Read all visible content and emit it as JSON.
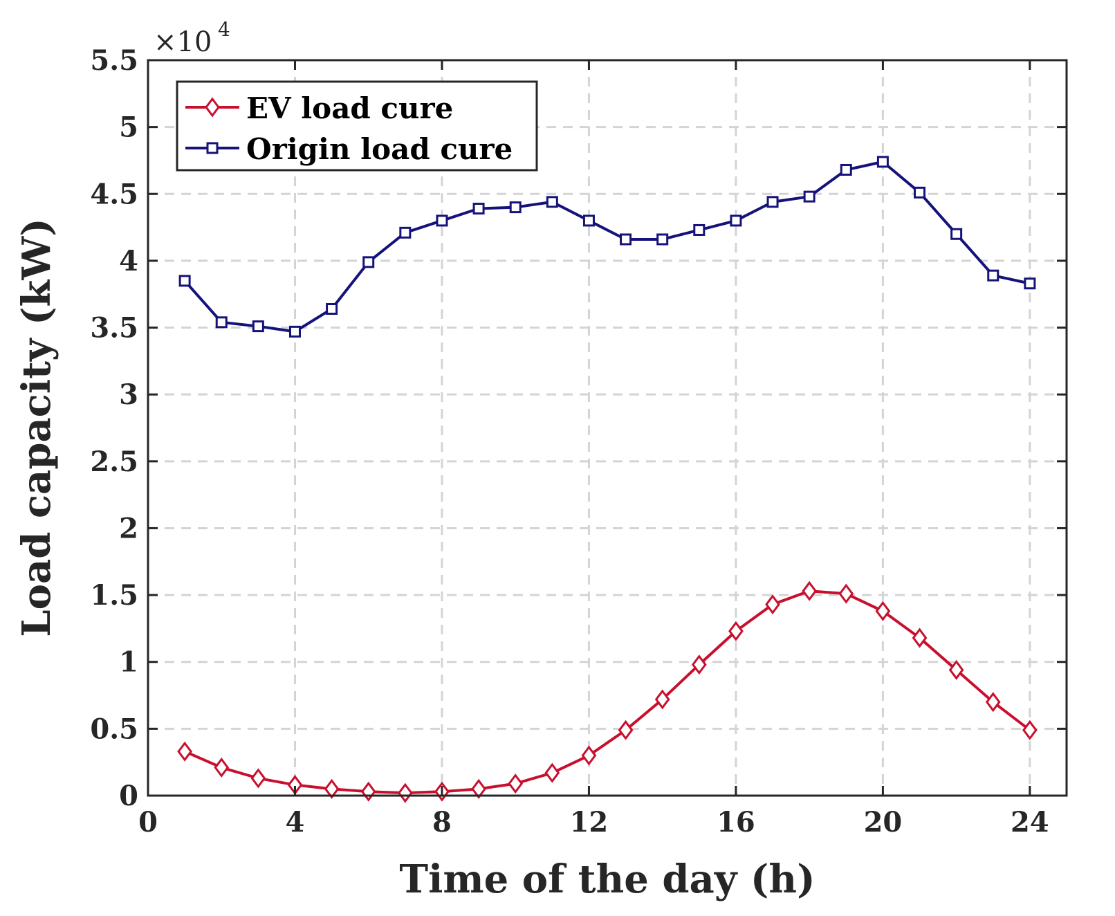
{
  "chart_data": {
    "type": "line",
    "title": "",
    "xlabel": "Time of the day (h)",
    "ylabel": "Load capacity (kW)",
    "y_exponent": {
      "base": "×10",
      "power": "4"
    },
    "xlim": [
      0,
      25
    ],
    "ylim": [
      0,
      5.5
    ],
    "xticks": [
      0,
      4,
      8,
      12,
      16,
      20,
      24
    ],
    "xtick_labels": [
      "0",
      "4",
      "8",
      "12",
      "16",
      "20",
      "24"
    ],
    "yticks": [
      0,
      0.5,
      1,
      1.5,
      2,
      2.5,
      3,
      3.5,
      4,
      4.5,
      5,
      5.5
    ],
    "ytick_labels": [
      "0",
      "0.5",
      "1",
      "1.5",
      "2",
      "2.5",
      "3",
      "3.5",
      "4",
      "4.5",
      "5",
      "5.5"
    ],
    "grid": true,
    "legend_position": "top-left",
    "x": [
      1,
      2,
      3,
      4,
      5,
      6,
      7,
      8,
      9,
      10,
      11,
      12,
      13,
      14,
      15,
      16,
      17,
      18,
      19,
      20,
      21,
      22,
      23,
      24
    ],
    "series": [
      {
        "name": "EV load cure",
        "color": "#c8102e",
        "marker": "diamond",
        "values": [
          0.33,
          0.21,
          0.13,
          0.08,
          0.05,
          0.03,
          0.02,
          0.03,
          0.05,
          0.09,
          0.17,
          0.3,
          0.49,
          0.72,
          0.98,
          1.23,
          1.43,
          1.53,
          1.51,
          1.38,
          1.18,
          0.94,
          0.7,
          0.49
        ]
      },
      {
        "name": "Origin load cure",
        "color": "#15137a",
        "marker": "square",
        "values": [
          3.85,
          3.54,
          3.51,
          3.47,
          3.64,
          3.99,
          4.21,
          4.3,
          4.39,
          4.4,
          4.44,
          4.3,
          4.16,
          4.16,
          4.23,
          4.3,
          4.44,
          4.48,
          4.68,
          4.74,
          4.51,
          4.2,
          3.89,
          3.83
        ]
      }
    ]
  }
}
